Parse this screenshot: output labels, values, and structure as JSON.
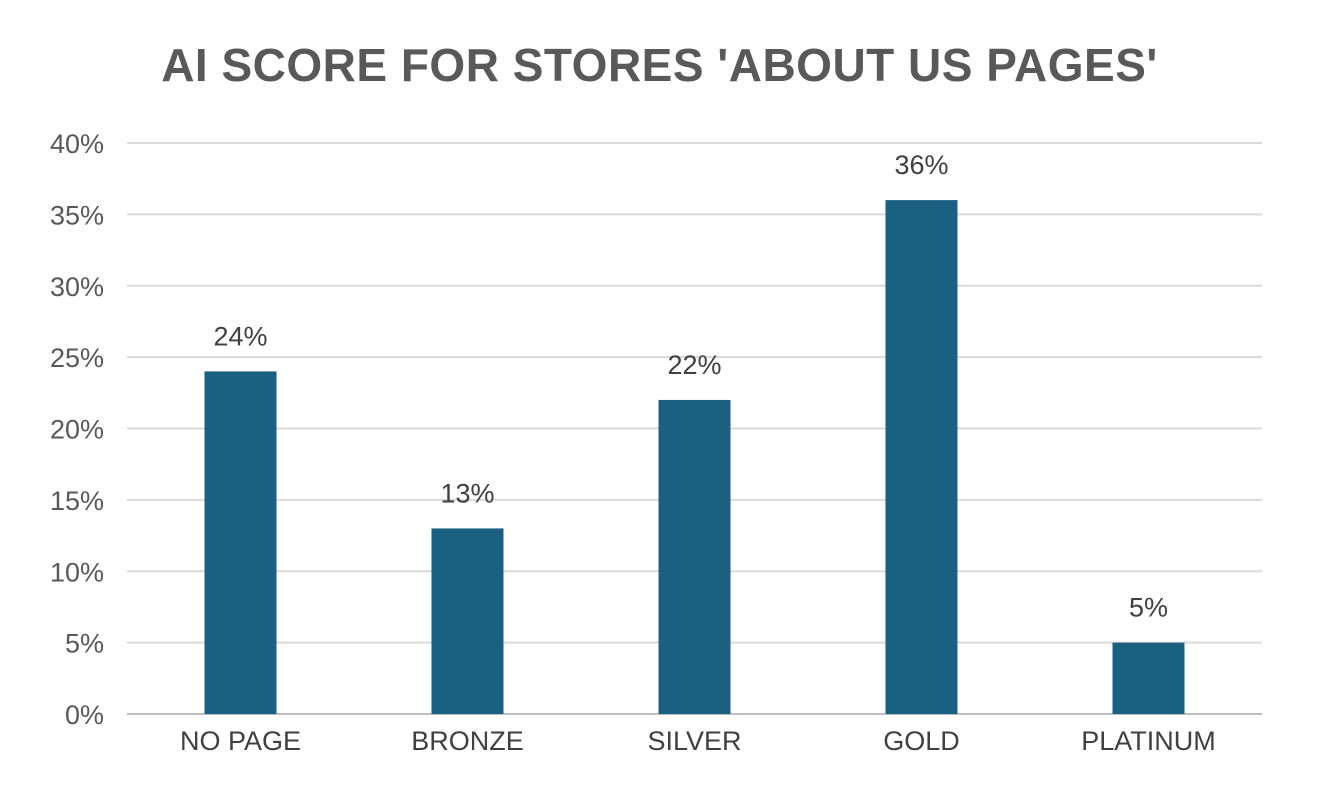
{
  "chart_data": {
    "type": "bar",
    "title": "AI SCORE FOR STORES 'ABOUT US PAGES'",
    "categories": [
      "NO PAGE",
      "BRONZE",
      "SILVER",
      "GOLD",
      "PLATINUM"
    ],
    "values": [
      24,
      13,
      22,
      36,
      5
    ],
    "data_labels": [
      "24%",
      "13%",
      "22%",
      "36%",
      "5%"
    ],
    "yticks": [
      0,
      5,
      10,
      15,
      20,
      25,
      30,
      35,
      40
    ],
    "ytick_labels": [
      "0%",
      "5%",
      "10%",
      "15%",
      "20%",
      "25%",
      "30%",
      "35%",
      "40%"
    ],
    "ylim": [
      0,
      40
    ],
    "xlabel": "",
    "ylabel": "",
    "grid": true,
    "legend": "none",
    "colors": {
      "bar": "#1b6080",
      "grid": "#d9d9d9",
      "axis": "#bfbfbf",
      "title": "#595959",
      "text": "#404040"
    }
  }
}
